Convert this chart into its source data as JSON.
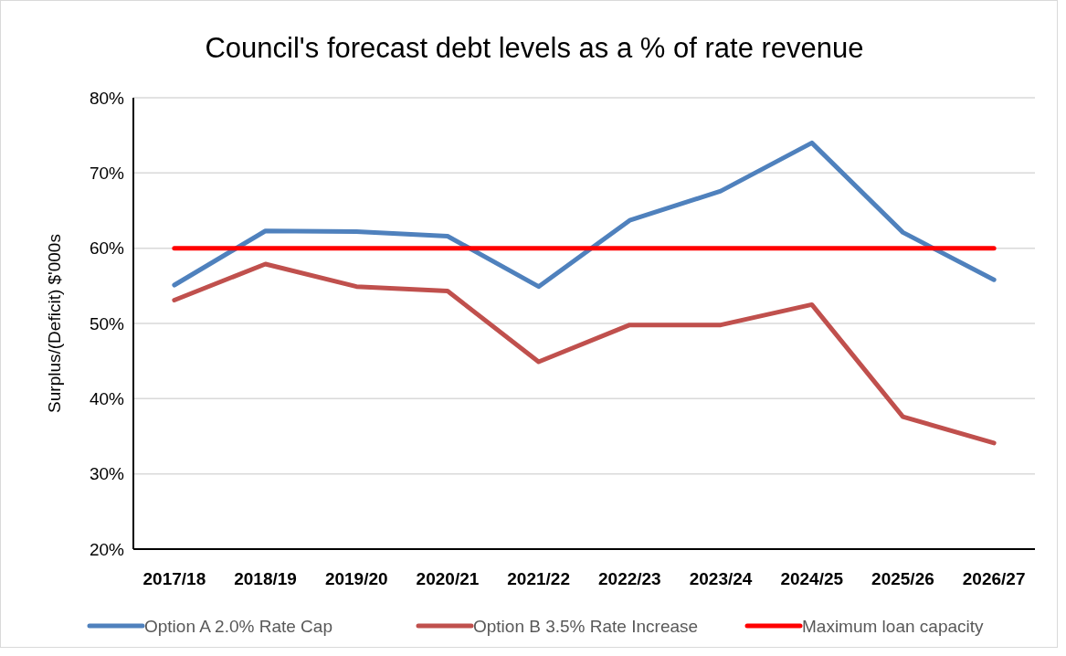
{
  "chart_data": {
    "type": "line",
    "title": "Council's forecast debt levels as a % of rate revenue",
    "ylabel": "Surplus/(Deficit) $'000s",
    "categories": [
      "2017/18",
      "2018/19",
      "2019/20",
      "2020/21",
      "2021/22",
      "2022/23",
      "2023/24",
      "2024/25",
      "2025/26",
      "2026/27"
    ],
    "series": [
      {
        "name": "Option A 2.0% Rate Cap",
        "color": "#4f81bd",
        "values": [
          55.1,
          62.3,
          62.2,
          61.6,
          54.9,
          63.7,
          67.6,
          74.0,
          62.1,
          55.8
        ]
      },
      {
        "name": "Option B 3.5% Rate Increase",
        "color": "#c0504d",
        "values": [
          53.1,
          57.9,
          54.9,
          54.3,
          44.9,
          49.8,
          49.8,
          52.5,
          37.6,
          34.1
        ]
      },
      {
        "name": "Maximum loan capacity",
        "color": "#ff0000",
        "values": [
          60,
          60,
          60,
          60,
          60,
          60,
          60,
          60,
          60,
          60
        ]
      }
    ],
    "ylim": [
      20,
      80
    ],
    "yticks": [
      {
        "value": 20,
        "label": "20%"
      },
      {
        "value": 30,
        "label": "30%"
      },
      {
        "value": 40,
        "label": "40%"
      },
      {
        "value": 50,
        "label": "50%"
      },
      {
        "value": 60,
        "label": "60%"
      },
      {
        "value": 70,
        "label": "70%"
      },
      {
        "value": 80,
        "label": "80%"
      }
    ],
    "grid": "y",
    "legend": "bottom",
    "marker": "none",
    "line_style": "solid"
  }
}
